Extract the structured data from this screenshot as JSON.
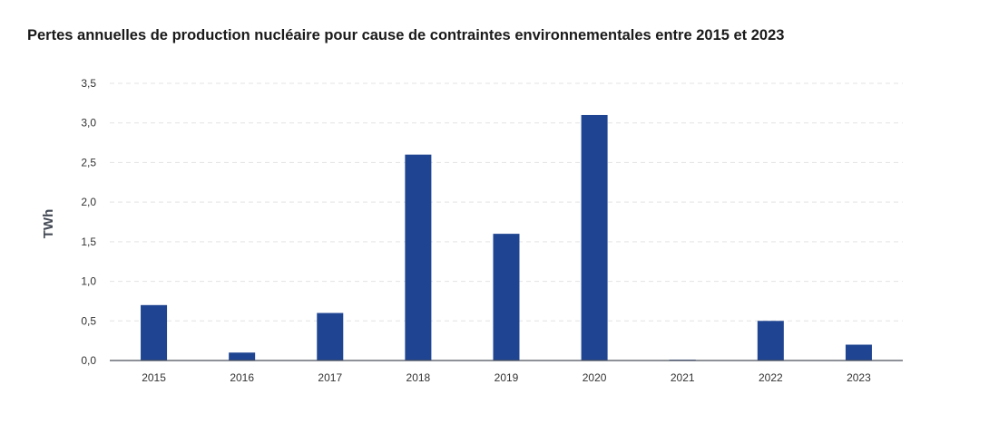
{
  "chart_data": {
    "type": "bar",
    "title": "Pertes annuelles de production nucléaire pour cause de contraintes environnementales entre 2015 et 2023",
    "xlabel": "",
    "ylabel": "TWh",
    "categories": [
      "2015",
      "2016",
      "2017",
      "2018",
      "2019",
      "2020",
      "2021",
      "2022",
      "2023"
    ],
    "values": [
      0.7,
      0.1,
      0.6,
      2.6,
      1.6,
      3.1,
      0.01,
      0.5,
      0.2
    ],
    "ylim": [
      0,
      3.5
    ],
    "yticks": [
      "0,0",
      "0,5",
      "1,0",
      "1,5",
      "2,0",
      "2,5",
      "3,0",
      "3,5"
    ],
    "grid": true,
    "legend": "none",
    "bar_color": "#1f4592",
    "grid_color": "#e3e3e3",
    "axis_color": "#4a4f5a"
  }
}
